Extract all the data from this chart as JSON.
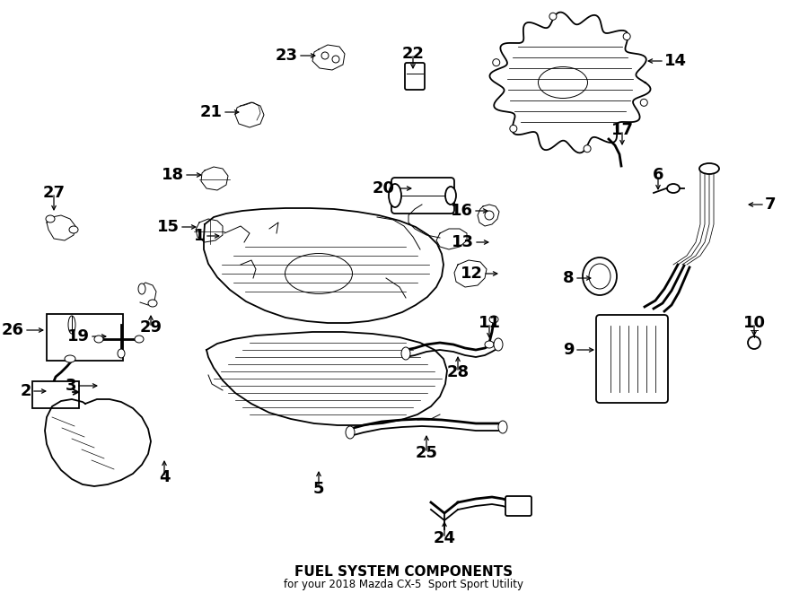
{
  "title": "FUEL SYSTEM COMPONENTS",
  "subtitle": "for your 2018 Mazda CX-5  Sport Sport Utility",
  "bg_color": "#ffffff",
  "line_color": "#000000",
  "fig_width": 9.0,
  "fig_height": 6.61,
  "dpi": 100,
  "label_fs": 13,
  "label_positions": {
    "1": [
      228,
      263,
      248,
      263
    ],
    "2": [
      35,
      436,
      55,
      436
    ],
    "3": [
      85,
      430,
      112,
      430
    ],
    "4": [
      183,
      532,
      183,
      510
    ],
    "5": [
      355,
      545,
      355,
      522
    ],
    "6": [
      733,
      195,
      733,
      215
    ],
    "7": [
      852,
      228,
      830,
      228
    ],
    "8": [
      640,
      310,
      662,
      310
    ],
    "9": [
      640,
      390,
      665,
      390
    ],
    "10": [
      840,
      360,
      840,
      378
    ],
    "11": [
      545,
      360,
      545,
      380
    ],
    "12": [
      538,
      305,
      558,
      305
    ],
    "13": [
      528,
      270,
      548,
      270
    ],
    "14": [
      740,
      68,
      718,
      68
    ],
    "15": [
      200,
      253,
      222,
      253
    ],
    "16": [
      527,
      235,
      547,
      235
    ],
    "17": [
      693,
      145,
      693,
      165
    ],
    "18": [
      205,
      195,
      228,
      195
    ],
    "19": [
      100,
      375,
      122,
      375
    ],
    "20": [
      440,
      210,
      462,
      210
    ],
    "21": [
      248,
      125,
      270,
      125
    ],
    "22": [
      460,
      60,
      460,
      80
    ],
    "23": [
      332,
      62,
      355,
      62
    ],
    "24": [
      495,
      600,
      495,
      578
    ],
    "25": [
      475,
      505,
      475,
      482
    ],
    "26": [
      27,
      368,
      52,
      368
    ],
    "27": [
      60,
      215,
      60,
      238
    ],
    "28": [
      510,
      415,
      510,
      394
    ],
    "29": [
      168,
      365,
      168,
      348
    ]
  }
}
